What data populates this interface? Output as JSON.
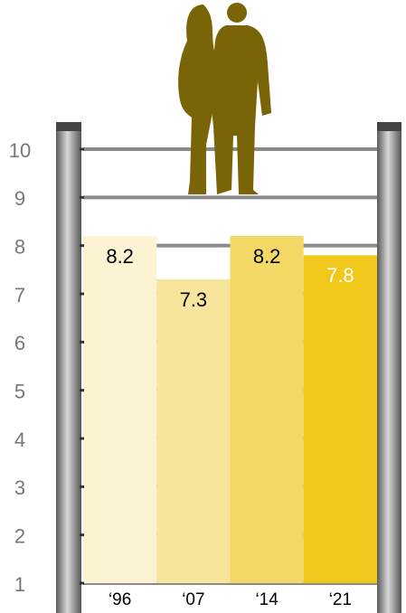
{
  "chart_data": {
    "type": "bar",
    "categories": [
      "‘96",
      "‘07",
      "‘14",
      "‘21"
    ],
    "values": [
      8.2,
      7.3,
      8.2,
      7.8
    ],
    "colors": [
      "#fcf3d2",
      "#f8e59c",
      "#f3d866",
      "#f0c81a"
    ],
    "value_label_colors": [
      "#000000",
      "#000000",
      "#000000",
      "#ffffff"
    ],
    "ylim": [
      1,
      10
    ],
    "yticks": [
      1,
      2,
      3,
      4,
      5,
      6,
      7,
      8,
      9,
      10
    ],
    "grid": true
  }
}
